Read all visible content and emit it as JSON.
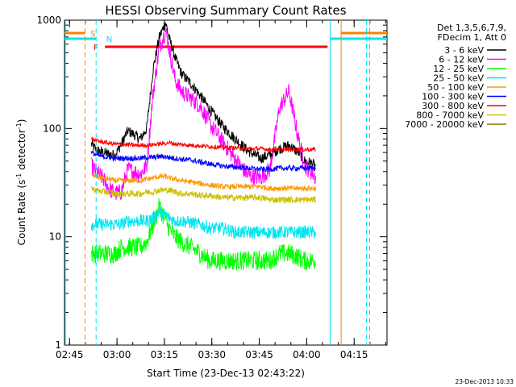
{
  "chart_data": {
    "type": "line",
    "title": "HESSI Observing Summary Count Rates",
    "xlabel": "Start Time (23-Dec-13 02:43:22)",
    "ylabel_main": "Count Rate (s",
    "ylabel_sup1": "-1",
    "ylabel_mid": " detector",
    "ylabel_sup2": "-1",
    "ylabel_end": ")",
    "y_scale": "log",
    "ylim": [
      1,
      1000
    ],
    "xlim_minutes": [
      0,
      102
    ],
    "x_tick_labels": [
      "02:45",
      "03:00",
      "03:15",
      "03:30",
      "03:45",
      "04:00",
      "04:15"
    ],
    "x_tick_minutes": [
      1.6,
      16.6,
      31.6,
      46.6,
      61.6,
      76.6,
      91.6
    ],
    "y_tick_labels": [
      "1",
      "10",
      "100",
      "1000"
    ],
    "y_tick_values": [
      1,
      10,
      100,
      1000
    ],
    "legend_header": [
      "Det 1,3,5,6,7,9,",
      "FDecim 1, Att 0"
    ],
    "legend_position": "right, outside plot",
    "timestamp": "23-Dec-2013 10:33",
    "flags": [
      {
        "label": "S",
        "color": "#ff7f00"
      },
      {
        "label": "N",
        "color": "#00e5ee"
      },
      {
        "label": "F",
        "color": "#ff0000"
      }
    ],
    "x_minutes": [
      8.5,
      10,
      12,
      14,
      16,
      18,
      20,
      22,
      24,
      26,
      28,
      30,
      32,
      33,
      35,
      37,
      40,
      43,
      46,
      50,
      54,
      58,
      62,
      65,
      68,
      71,
      74,
      76,
      78,
      79.5
    ],
    "series": [
      {
        "name": "3 - 6 keV",
        "color": "#000000",
        "values": [
          72,
          63,
          60,
          58,
          57,
          72,
          95,
          88,
          80,
          100,
          350,
          700,
          950,
          700,
          450,
          320,
          260,
          200,
          150,
          105,
          80,
          62,
          53,
          57,
          65,
          70,
          60,
          50,
          48,
          45
        ]
      },
      {
        "name": "6 - 12 keV",
        "color": "#ff00ff",
        "values": [
          45,
          40,
          35,
          28,
          25,
          26,
          42,
          40,
          38,
          45,
          210,
          560,
          800,
          560,
          280,
          220,
          190,
          160,
          110,
          75,
          52,
          37,
          35,
          42,
          155,
          220,
          80,
          45,
          40,
          35
        ]
      },
      {
        "name": "12 - 25 keV",
        "color": "#00ff00",
        "values": [
          7,
          7,
          7,
          7,
          7,
          8,
          8,
          8,
          8,
          9,
          13,
          19,
          14,
          12,
          10,
          9,
          8,
          7,
          6,
          6,
          6,
          6,
          6,
          6,
          7,
          7,
          6.5,
          6,
          6,
          6
        ]
      },
      {
        "name": "25 - 50 keV",
        "color": "#00e5ee",
        "values": [
          13,
          13,
          13,
          13,
          13,
          13,
          14,
          14,
          14,
          14,
          15,
          17,
          16,
          15,
          14,
          14,
          13.5,
          13,
          12,
          12,
          11,
          11,
          11,
          11,
          11,
          11,
          11,
          11,
          11,
          11
        ]
      },
      {
        "name": "50 - 100 keV",
        "color": "#ff9900",
        "values": [
          37,
          36,
          35,
          34,
          33,
          33,
          33,
          33,
          33,
          34,
          35,
          36,
          36,
          35,
          34,
          33,
          32,
          31,
          30,
          29,
          29,
          29,
          29,
          28,
          28,
          28,
          28,
          28,
          28,
          28
        ]
      },
      {
        "name": "100 - 300 keV",
        "color": "#0000ff",
        "values": [
          60,
          57,
          55,
          54,
          53,
          53,
          53,
          53,
          53,
          54,
          54,
          55,
          55,
          54,
          53,
          52,
          51,
          49,
          47,
          45,
          44,
          43,
          42,
          42,
          43,
          43,
          43,
          43,
          43,
          43
        ]
      },
      {
        "name": "300 - 800 keV",
        "color": "#ff0000",
        "values": [
          80,
          77,
          75,
          73,
          72,
          71,
          71,
          70,
          70,
          70,
          71,
          72,
          73,
          74,
          72,
          71,
          70,
          69,
          68,
          67,
          66,
          65,
          65,
          64,
          64,
          64,
          64,
          64,
          64,
          64
        ]
      },
      {
        "name": "800 - 7000 keV",
        "color": "#ccc000",
        "values": [
          28,
          27,
          26,
          26,
          25,
          25,
          25,
          25,
          25,
          26,
          26,
          27,
          27,
          27,
          26,
          25,
          25,
          24,
          24,
          23,
          23,
          23,
          23,
          22,
          22,
          22,
          22,
          22,
          22,
          22
        ]
      },
      {
        "name": "7000 - 20000 keV",
        "color": "#808000",
        "values": []
      }
    ]
  }
}
